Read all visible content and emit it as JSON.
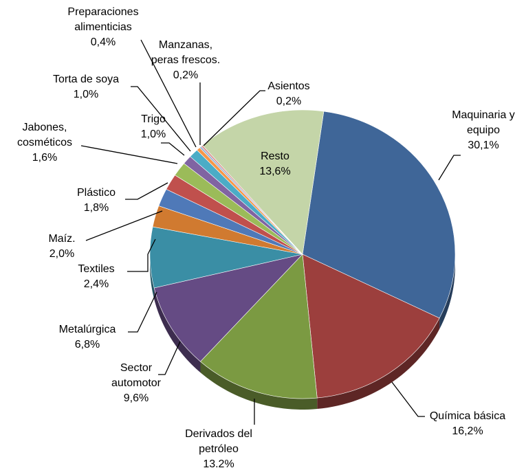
{
  "chart_data": {
    "type": "pie",
    "categories": [
      [
        "Maquinaria y",
        "equipo"
      ],
      [
        "Química básica"
      ],
      [
        "Derivados del",
        "petróleo"
      ],
      [
        "Sector",
        "automotor"
      ],
      [
        "Metalúrgica"
      ],
      [
        "Textiles"
      ],
      [
        "Maíz."
      ],
      [
        "Plástico"
      ],
      [
        "Jabones,",
        "cosméticos"
      ],
      [
        "Trigo"
      ],
      [
        "Torta de soya"
      ],
      [
        "Preparaciones",
        "alimenticias"
      ],
      [
        "Manzanas,",
        "peras  frescos."
      ],
      [
        "Asientos"
      ],
      [
        "Resto"
      ]
    ],
    "values": [
      30.1,
      16.2,
      13.2,
      9.6,
      6.8,
      2.4,
      2.0,
      1.8,
      1.6,
      1.0,
      1.0,
      0.4,
      0.2,
      0.2,
      13.6
    ],
    "value_labels": [
      "30,1%",
      "16,2%",
      "13.2%",
      "9,6%",
      "6,8%",
      "2,4%",
      "2,0%",
      "1,8%",
      "1,6%",
      "1,0%",
      "1,0%",
      "0,4%",
      "0,2%",
      "0,2%",
      "13,6%"
    ],
    "colors": [
      "#3f6698",
      "#9c3f3d",
      "#7b9a42",
      "#654b84",
      "#3a8ea5",
      "#d07a30",
      "#4f79b8",
      "#c0504d",
      "#9bbb59",
      "#8064a2",
      "#4bacc6",
      "#f79646",
      "#95b3d7",
      "#d99694",
      "#c4d5a8"
    ]
  }
}
